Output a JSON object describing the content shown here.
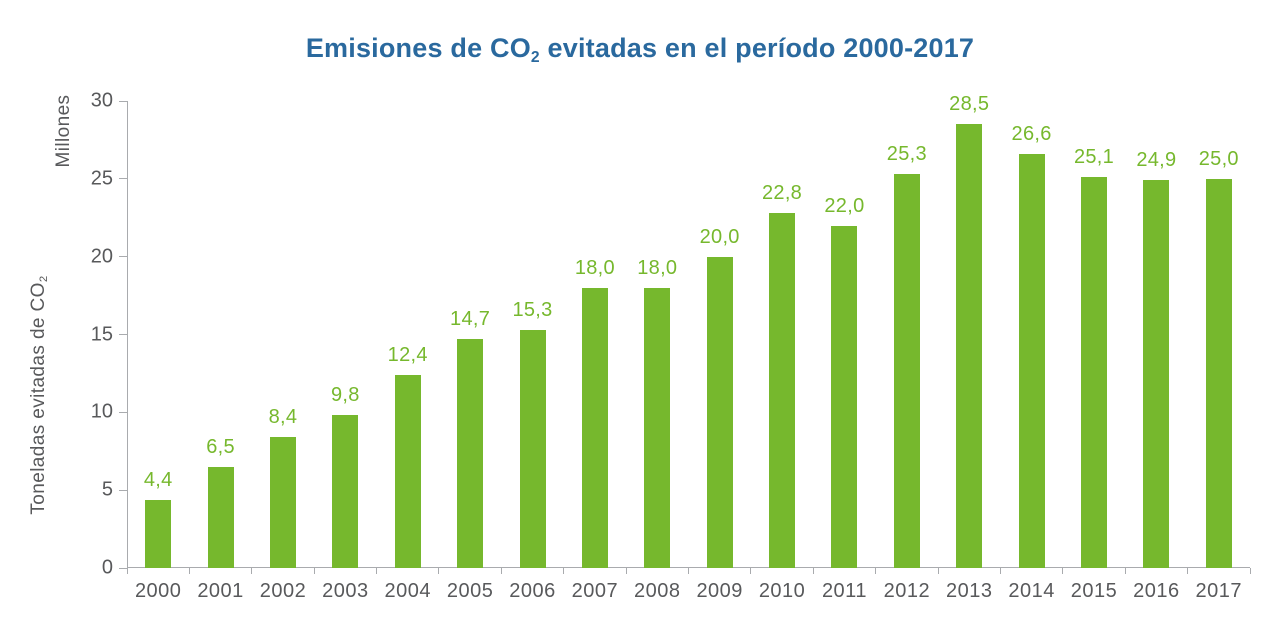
{
  "title": {
    "prefix": "Emisiones de CO",
    "subscript": "2",
    "suffix": " evitadas en el período 2000-2017"
  },
  "y_axis": {
    "unit": "Millones",
    "title_prefix": "Toneladas evitadas de CO",
    "title_subscript": "2",
    "ticks": [
      "0",
      "5",
      "10",
      "15",
      "20",
      "25",
      "30"
    ]
  },
  "chart_data": {
    "type": "bar",
    "title": "Emisiones de CO2 evitadas en el período 2000-2017",
    "categories": [
      "2000",
      "2001",
      "2002",
      "2003",
      "2004",
      "2005",
      "2006",
      "2007",
      "2008",
      "2009",
      "2010",
      "2011",
      "2012",
      "2013",
      "2014",
      "2015",
      "2016",
      "2017"
    ],
    "values": [
      4.4,
      6.5,
      8.4,
      9.8,
      12.4,
      14.7,
      15.3,
      18.0,
      18.0,
      20.0,
      22.8,
      22.0,
      25.3,
      28.5,
      26.6,
      25.1,
      24.9,
      25.0
    ],
    "value_labels": [
      "4,4",
      "6,5",
      "8,4",
      "9,8",
      "12,4",
      "14,7",
      "15,3",
      "18,0",
      "18,0",
      "20,0",
      "22,8",
      "22,0",
      "25,3",
      "28,5",
      "26,6",
      "25,1",
      "24,9",
      "25,0"
    ],
    "xlabel": "",
    "ylabel": "Toneladas evitadas de CO2 (Millones)",
    "ylim": [
      0,
      30
    ],
    "grid": false,
    "legend": false,
    "bar_color": "#76b82d"
  },
  "colors": {
    "bar": "#76b82d",
    "title": "#2a699e",
    "axis_text": "#58595b",
    "axis_line": "#a9abae"
  }
}
